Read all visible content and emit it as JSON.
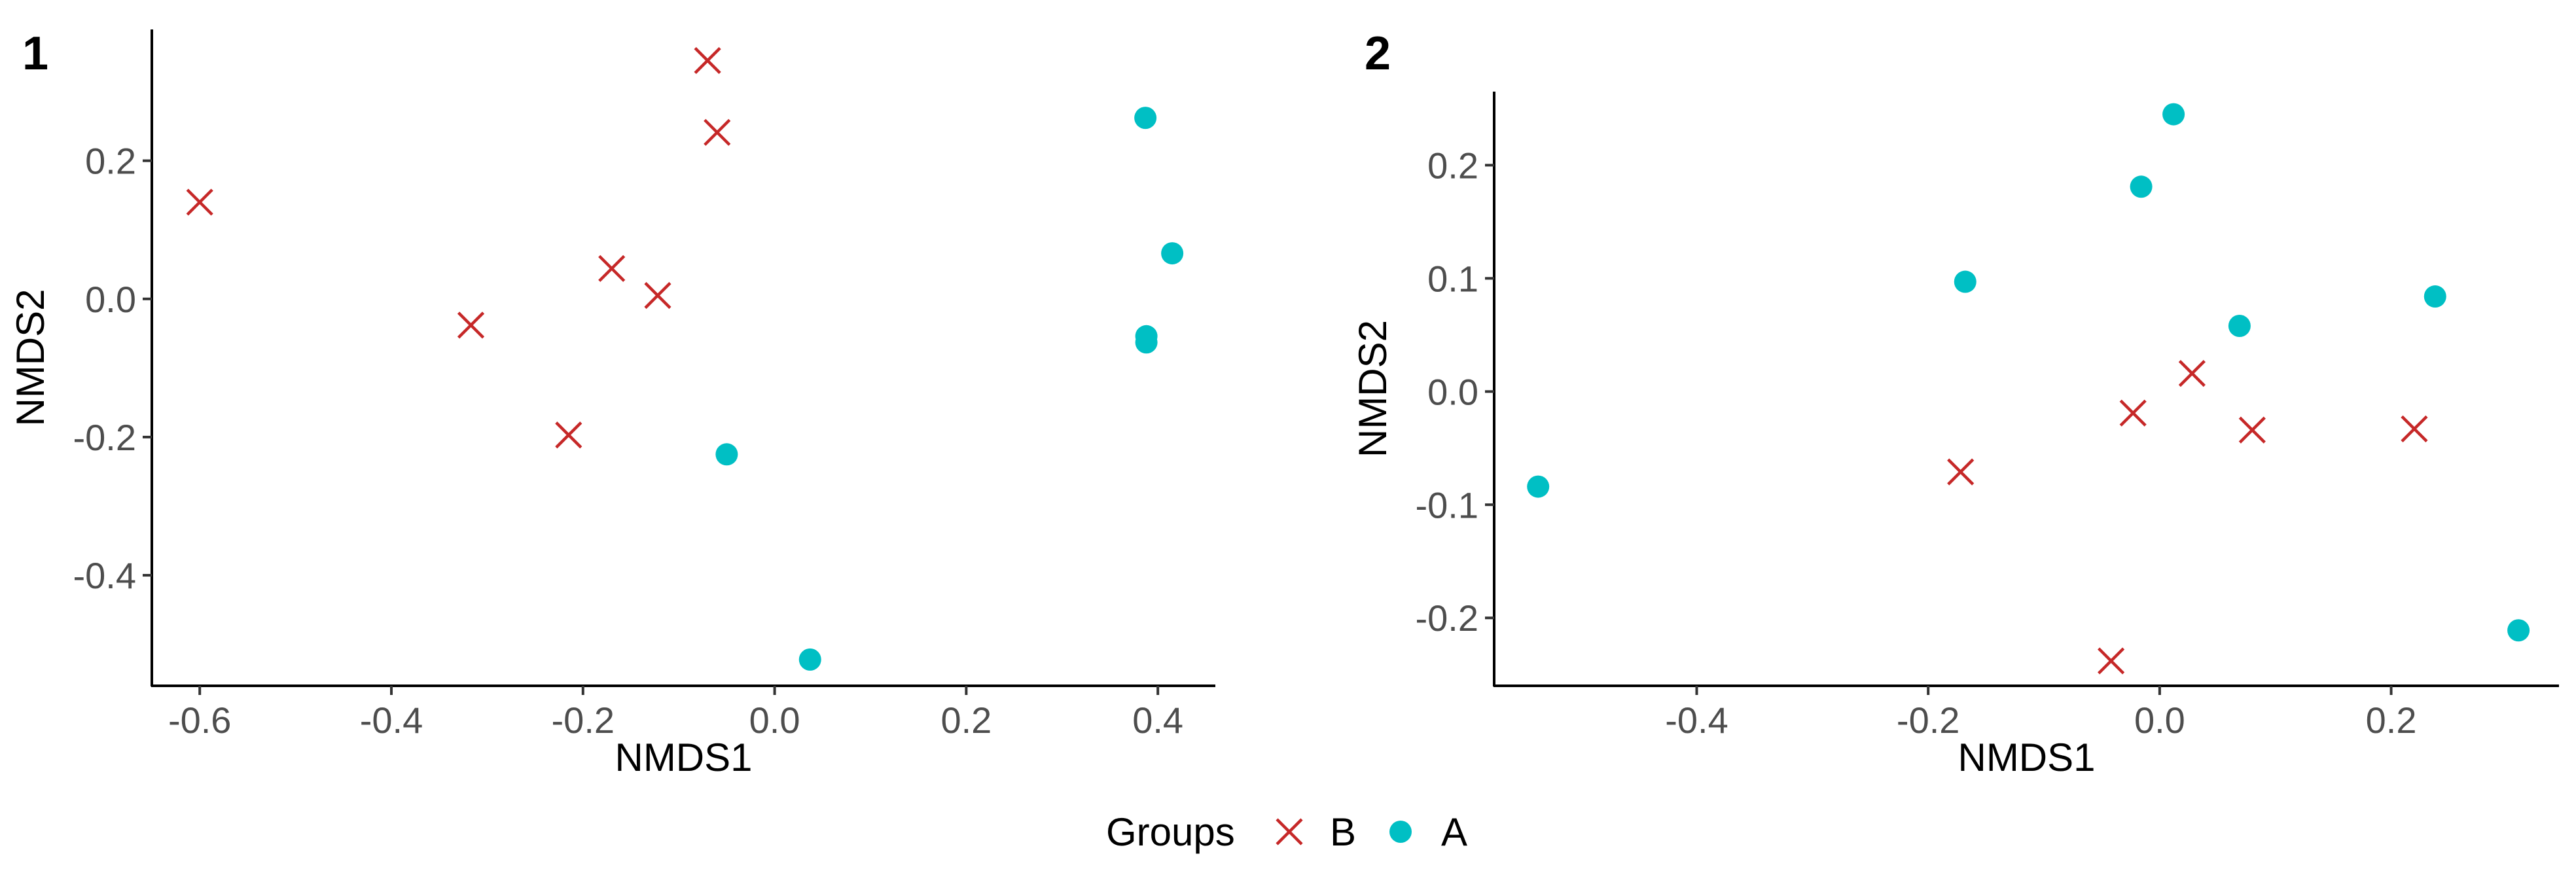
{
  "legend": {
    "title": "Groups",
    "position": "bottom",
    "entries": [
      {
        "label": "B",
        "shape": "cross",
        "color": "#c62828"
      },
      {
        "label": "A",
        "shape": "circle",
        "color": "#00bfc4"
      }
    ]
  },
  "chart_data": [
    {
      "type": "scatter",
      "panel_label": "1",
      "xlabel": "NMDS1",
      "ylabel": "NMDS2",
      "xlim": [
        -0.65,
        0.46
      ],
      "ylim": [
        -0.56,
        0.39
      ],
      "xticks": [
        -0.6,
        -0.4,
        -0.2,
        0.0,
        0.2,
        0.4
      ],
      "xtick_labels": [
        "-0.6",
        "-0.4",
        "-0.2",
        "0.0",
        "0.2",
        "0.4"
      ],
      "yticks": [
        -0.4,
        -0.2,
        0.0,
        0.2
      ],
      "ytick_labels": [
        "-0.4",
        "-0.2",
        "0.0",
        "0.2"
      ],
      "grid": false,
      "series": [
        {
          "name": "B",
          "shape": "cross",
          "color": "#c62828",
          "points": [
            [
              -0.6,
              0.14
            ],
            [
              -0.317,
              -0.038
            ],
            [
              -0.215,
              -0.197
            ],
            [
              -0.17,
              0.044
            ],
            [
              -0.122,
              0.005
            ],
            [
              -0.07,
              0.345
            ],
            [
              -0.06,
              0.241
            ]
          ]
        },
        {
          "name": "A",
          "shape": "circle",
          "color": "#00bfc4",
          "points": [
            [
              0.387,
              0.262
            ],
            [
              0.415,
              0.066
            ],
            [
              0.388,
              -0.054
            ],
            [
              0.388,
              -0.063
            ],
            [
              -0.05,
              -0.225
            ],
            [
              0.037,
              -0.522
            ]
          ]
        }
      ]
    },
    {
      "type": "scatter",
      "panel_label": "2",
      "xlabel": "NMDS1",
      "ylabel": "NMDS2",
      "xlim": [
        -0.575,
        0.345
      ],
      "ylim": [
        -0.26,
        0.265
      ],
      "xticks": [
        -0.4,
        -0.2,
        0.0,
        0.2
      ],
      "xtick_labels": [
        "-0.4",
        "-0.2",
        "0.0",
        "0.2"
      ],
      "yticks": [
        -0.2,
        -0.1,
        0.0,
        0.1,
        0.2
      ],
      "ytick_labels": [
        "-0.2",
        "-0.1",
        "0.0",
        "0.1",
        "0.2"
      ],
      "grid": false,
      "series": [
        {
          "name": "B",
          "shape": "cross",
          "color": "#c62828",
          "points": [
            [
              -0.172,
              -0.071
            ],
            [
              -0.042,
              -0.238
            ],
            [
              -0.023,
              -0.019
            ],
            [
              0.028,
              0.016
            ],
            [
              0.08,
              -0.034
            ],
            [
              0.22,
              -0.033
            ]
          ]
        },
        {
          "name": "A",
          "shape": "circle",
          "color": "#00bfc4",
          "points": [
            [
              -0.537,
              -0.084
            ],
            [
              -0.168,
              0.097
            ],
            [
              0.012,
              0.245
            ],
            [
              -0.016,
              0.181
            ],
            [
              0.069,
              0.058
            ],
            [
              0.238,
              0.084
            ],
            [
              0.31,
              -0.211
            ]
          ]
        }
      ]
    }
  ]
}
